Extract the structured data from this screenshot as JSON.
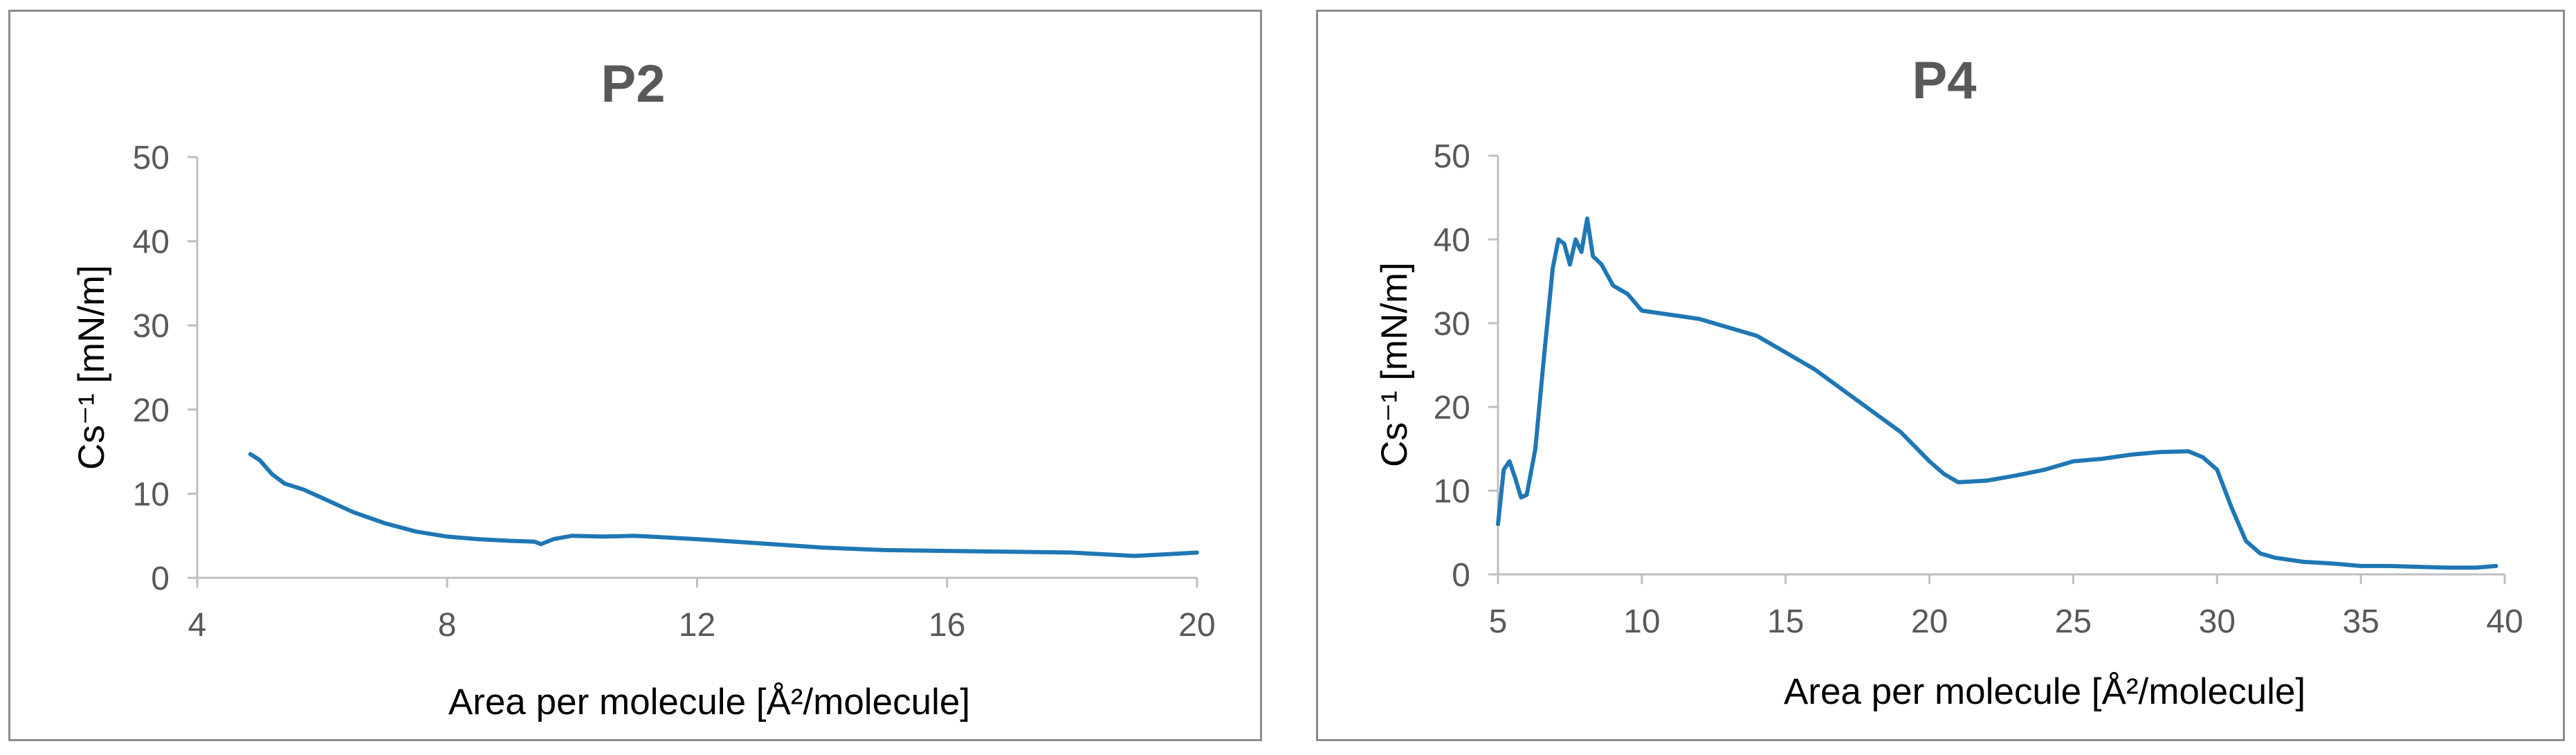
{
  "chart_data": [
    {
      "type": "line",
      "title": "P2",
      "xlabel": "Area per molecule [Å²/molecule]",
      "ylabel": "Cs⁻¹ [mN/m]",
      "xlim": [
        4,
        20
      ],
      "ylim": [
        0,
        50
      ],
      "x_ticks": [
        "4",
        "8",
        "12",
        "16",
        "20"
      ],
      "y_ticks": [
        "0",
        "10",
        "20",
        "30",
        "40",
        "50"
      ],
      "grid": false,
      "series_color": "#1f77b4",
      "series": [
        {
          "x": [
            4.85,
            5.0,
            5.2,
            5.4,
            5.7,
            6.0,
            6.5,
            7.0,
            7.5,
            8.0,
            8.5,
            9.0,
            9.4,
            9.5,
            9.7,
            10.0,
            10.5,
            11.0,
            11.5,
            12.0,
            13.0,
            14.0,
            15.0,
            16.0,
            17.0,
            18.0,
            19.0,
            19.5,
            20.0
          ],
          "values": [
            14.7,
            14.0,
            12.3,
            11.2,
            10.5,
            9.5,
            7.8,
            6.5,
            5.5,
            4.9,
            4.6,
            4.4,
            4.3,
            4.0,
            4.6,
            5.0,
            4.9,
            5.0,
            4.8,
            4.6,
            4.1,
            3.6,
            3.3,
            3.2,
            3.1,
            3.0,
            2.6,
            2.8,
            3.0
          ]
        }
      ]
    },
    {
      "type": "line",
      "title": "P4",
      "xlabel": "Area per molecule [Å²/molecule]",
      "ylabel": "Cs⁻¹ [mN/m]",
      "xlim": [
        5,
        40
      ],
      "ylim": [
        0,
        50
      ],
      "x_ticks": [
        "5",
        "10",
        "15",
        "20",
        "25",
        "30",
        "35",
        "40"
      ],
      "y_ticks": [
        "0",
        "10",
        "20",
        "30",
        "40",
        "50"
      ],
      "grid": false,
      "series_color": "#1f77b4",
      "series": [
        {
          "x": [
            5.0,
            5.2,
            5.4,
            5.6,
            5.8,
            6.0,
            6.3,
            6.6,
            6.9,
            7.1,
            7.3,
            7.5,
            7.7,
            7.9,
            8.1,
            8.3,
            8.6,
            9.0,
            9.5,
            10.0,
            11.0,
            12.0,
            13.0,
            14.0,
            15.0,
            16.0,
            17.0,
            18.0,
            19.0,
            20.0,
            20.5,
            21.0,
            22.0,
            23.0,
            24.0,
            25.0,
            26.0,
            27.0,
            28.0,
            29.0,
            29.5,
            30.0,
            30.5,
            31.0,
            31.5,
            32.0,
            33.0,
            34.0,
            35.0,
            36.0,
            37.0,
            38.0,
            39.0,
            39.7
          ],
          "values": [
            6.0,
            12.5,
            13.5,
            11.5,
            9.2,
            9.5,
            15.0,
            26.0,
            36.5,
            40.0,
            39.5,
            37.0,
            40.0,
            38.5,
            42.5,
            38.0,
            37.0,
            34.5,
            33.5,
            31.5,
            31.0,
            30.5,
            29.5,
            28.5,
            26.5,
            24.5,
            22.0,
            19.5,
            17.0,
            13.5,
            12.0,
            11.0,
            11.2,
            11.8,
            12.5,
            13.5,
            13.8,
            14.3,
            14.6,
            14.7,
            14.0,
            12.5,
            8.0,
            4.0,
            2.5,
            2.0,
            1.5,
            1.3,
            1.0,
            1.0,
            0.9,
            0.8,
            0.8,
            1.0
          ]
        }
      ]
    }
  ]
}
